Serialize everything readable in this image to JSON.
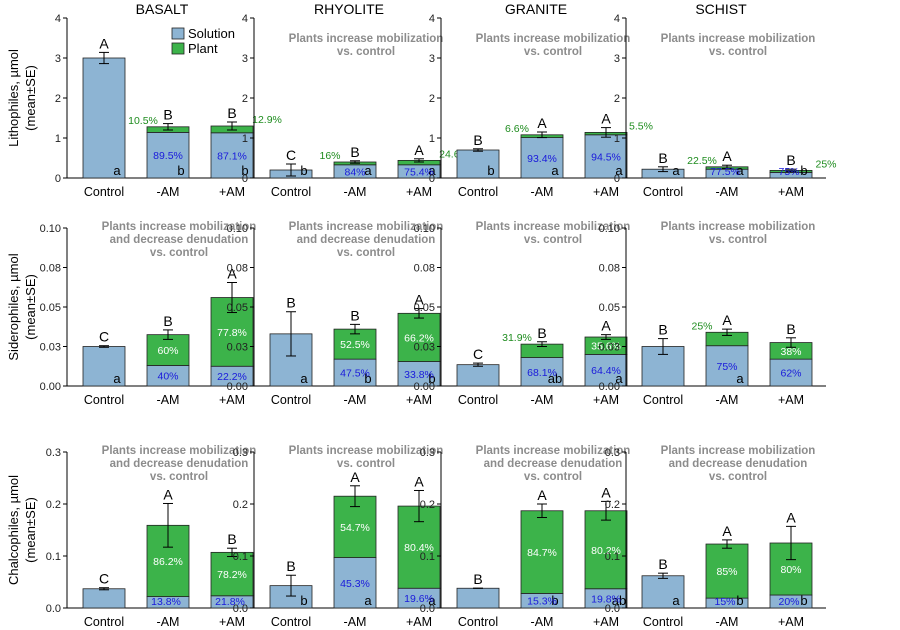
{
  "colors": {
    "solution": "#8db4d3",
    "plant": "#3cb34a",
    "pct_solution": "#1a1adb",
    "pct_plant_above": "#1e8c1e",
    "pct_plant_inside": "#ffffff",
    "note": "#8c8c8c"
  },
  "legend": {
    "solution_label": "Solution",
    "plant_label": "Plant"
  },
  "row_labels": [
    {
      "line1": "Lithophiles, µmol",
      "line2": "(mean±SE)"
    },
    {
      "line1": "Siderophiles, µmol",
      "line2": "(mean±SE)"
    },
    {
      "line1": "Chalcophiles, µmol",
      "line2": "(mean±SE)"
    }
  ],
  "chart_data": [
    {
      "type": "bar",
      "title": "BASALT",
      "row": "Lithophiles",
      "categories": [
        "Control",
        "-AM",
        "+AM"
      ],
      "ylim": [
        0,
        4
      ],
      "yticks": [
        "0",
        "1",
        "2",
        "3",
        "4"
      ],
      "series": [
        {
          "name": "Solution",
          "values": [
            3.0,
            1.14,
            1.13
          ]
        },
        {
          "name": "Plant",
          "values": [
            0,
            0.14,
            0.17
          ]
        }
      ],
      "error": [
        0.14,
        0.08,
        0.1
      ],
      "letters_top": [
        "A",
        "B",
        "B"
      ],
      "letters_bottom": [
        "a",
        "b",
        "b"
      ],
      "pct_solution": [
        "",
        "89.5%",
        "87.1%"
      ],
      "pct_plant": [
        "",
        "10.5%",
        "12.9%"
      ],
      "note": ""
    },
    {
      "type": "bar",
      "title": "RHYOLITE",
      "row": "Lithophiles",
      "categories": [
        "Control",
        "-AM",
        "+AM"
      ],
      "ylim": [
        0,
        4
      ],
      "yticks": [
        "0",
        "1",
        "2",
        "3",
        "4"
      ],
      "series": [
        {
          "name": "Solution",
          "values": [
            0.2,
            0.33,
            0.33
          ]
        },
        {
          "name": "Plant",
          "values": [
            0,
            0.07,
            0.11
          ]
        }
      ],
      "error": [
        0.15,
        0.03,
        0.04
      ],
      "letters_top": [
        "C",
        "B",
        "A"
      ],
      "letters_bottom": [
        "b",
        "a",
        "a"
      ],
      "pct_solution": [
        "",
        "84%",
        "75.4%"
      ],
      "pct_plant": [
        "",
        "16%",
        "24.6%"
      ],
      "note": "Plants increase mobilization\nvs. control"
    },
    {
      "type": "bar",
      "title": "GRANITE",
      "row": "Lithophiles",
      "categories": [
        "Control",
        "-AM",
        "+AM"
      ],
      "ylim": [
        0,
        4
      ],
      "yticks": [
        "0",
        "1",
        "2",
        "3",
        "4"
      ],
      "series": [
        {
          "name": "Solution",
          "values": [
            0.7,
            1.01,
            1.08
          ]
        },
        {
          "name": "Plant",
          "values": [
            0,
            0.07,
            0.06
          ]
        }
      ],
      "error": [
        0.03,
        0.07,
        0.12
      ],
      "letters_top": [
        "B",
        "A",
        "A"
      ],
      "letters_bottom": [
        "b",
        "a",
        "a"
      ],
      "pct_solution": [
        "",
        "93.4%",
        "94.5%"
      ],
      "pct_plant": [
        "",
        "6.6%",
        "5.5%"
      ],
      "note": "Plants increase mobilization\nvs. control"
    },
    {
      "type": "bar",
      "title": "SCHIST",
      "row": "Lithophiles",
      "categories": [
        "Control",
        "-AM",
        "+AM"
      ],
      "ylim": [
        0,
        4
      ],
      "yticks": [
        "0",
        "1",
        "2",
        "3",
        "4"
      ],
      "series": [
        {
          "name": "Solution",
          "values": [
            0.22,
            0.22,
            0.14
          ]
        },
        {
          "name": "Plant",
          "values": [
            0,
            0.06,
            0.05
          ]
        }
      ],
      "error": [
        0.06,
        0.04,
        0.03
      ],
      "letters_top": [
        "B",
        "A",
        "B"
      ],
      "letters_bottom": [
        "a",
        "a",
        "b"
      ],
      "pct_solution": [
        "",
        "77.5%",
        "75%"
      ],
      "pct_plant": [
        "",
        "22.5%",
        "25%"
      ],
      "note": "Plants increase mobilization\nvs. control"
    },
    {
      "type": "bar",
      "title": "",
      "row": "Siderophiles",
      "categories": [
        "Control",
        "-AM",
        "+AM"
      ],
      "ylim": [
        0,
        0.1
      ],
      "yticks": [
        "0.00",
        "0.03",
        "0.05",
        "0.08",
        "0.10"
      ],
      "series": [
        {
          "name": "Solution",
          "values": [
            0.025,
            0.013,
            0.0125
          ]
        },
        {
          "name": "Plant",
          "values": [
            0,
            0.0195,
            0.0435
          ]
        }
      ],
      "error": [
        0.0005,
        0.003,
        0.0095
      ],
      "letters_top": [
        "C",
        "B",
        "A"
      ],
      "letters_bottom": [
        "a",
        "",
        ""
      ],
      "pct_solution": [
        "",
        "40%",
        "22.2%"
      ],
      "pct_plant": [
        "",
        "60%",
        "77.8%"
      ],
      "note": "Plants increase mobilization\nand decrease denudation\nvs. control"
    },
    {
      "type": "bar",
      "title": "",
      "row": "Siderophiles",
      "categories": [
        "Control",
        "-AM",
        "+AM"
      ],
      "ylim": [
        0,
        0.1
      ],
      "yticks": [
        "0.00",
        "0.03",
        "0.05",
        "0.08",
        "0.10"
      ],
      "series": [
        {
          "name": "Solution",
          "values": [
            0.033,
            0.017,
            0.0155
          ]
        },
        {
          "name": "Plant",
          "values": [
            0,
            0.019,
            0.0305
          ]
        }
      ],
      "error": [
        0.014,
        0.003,
        0.003
      ],
      "letters_top": [
        "B",
        "B",
        "A"
      ],
      "letters_bottom": [
        "a",
        "b",
        "b"
      ],
      "pct_solution": [
        "",
        "47.5%",
        "33.8%"
      ],
      "pct_plant": [
        "",
        "52.5%",
        "66.2%"
      ],
      "note": "Plants increase mobilization\nand decrease denudation\nvs. control"
    },
    {
      "type": "bar",
      "title": "",
      "row": "Siderophiles",
      "categories": [
        "Control",
        "-AM",
        "+AM"
      ],
      "ylim": [
        0,
        0.1
      ],
      "yticks": [
        "0.00",
        "0.03",
        "0.05",
        "0.08",
        "0.10"
      ],
      "series": [
        {
          "name": "Solution",
          "values": [
            0.0135,
            0.018,
            0.02
          ]
        },
        {
          "name": "Plant",
          "values": [
            0,
            0.0085,
            0.011
          ]
        }
      ],
      "error": [
        0.001,
        0.0015,
        0.0015
      ],
      "letters_top": [
        "C",
        "B",
        "A"
      ],
      "letters_bottom": [
        "",
        "ab",
        "a"
      ],
      "pct_solution": [
        "",
        "68.1%",
        "64.4%"
      ],
      "pct_plant": [
        "",
        "31.9%",
        "35.6%"
      ],
      "note": "Plants increase mobilization\nvs. control"
    },
    {
      "type": "bar",
      "title": "",
      "row": "Siderophiles",
      "categories": [
        "Control",
        "-AM",
        "+AM"
      ],
      "ylim": [
        0,
        0.1
      ],
      "yticks": [
        "0.00",
        "0.03",
        "0.05",
        "0.08",
        "0.10"
      ],
      "series": [
        {
          "name": "Solution",
          "values": [
            0.025,
            0.0255,
            0.017
          ]
        },
        {
          "name": "Plant",
          "values": [
            0,
            0.0085,
            0.0105
          ]
        }
      ],
      "error": [
        0.005,
        0.002,
        0.003
      ],
      "letters_top": [
        "B",
        "A",
        "B"
      ],
      "letters_bottom": [
        "",
        "a",
        ""
      ],
      "pct_solution": [
        "",
        "75%",
        "62%"
      ],
      "pct_plant": [
        "",
        "25%",
        "38%"
      ],
      "note": "Plants increase mobilization\nvs. control"
    },
    {
      "type": "bar",
      "title": "",
      "row": "Chalcophiles",
      "categories": [
        "Control",
        "-AM",
        "+AM"
      ],
      "ylim": [
        0,
        0.3
      ],
      "yticks": [
        "0.0",
        "0.1",
        "0.2",
        "0.3"
      ],
      "series": [
        {
          "name": "Solution",
          "values": [
            0.037,
            0.022,
            0.0235
          ]
        },
        {
          "name": "Plant",
          "values": [
            0,
            0.137,
            0.0835
          ]
        }
      ],
      "error": [
        0.002,
        0.042,
        0.008
      ],
      "letters_top": [
        "C",
        "A",
        "B"
      ],
      "letters_bottom": [
        "",
        "",
        ""
      ],
      "pct_solution": [
        "",
        "13.8%",
        "21.8%"
      ],
      "pct_plant": [
        "",
        "86.2%",
        "78.2%"
      ],
      "note": "Plants increase mobilization\nand decrease denudation\nvs. control"
    },
    {
      "type": "bar",
      "title": "",
      "row": "Chalcophiles",
      "categories": [
        "Control",
        "-AM",
        "+AM"
      ],
      "ylim": [
        0,
        0.3
      ],
      "yticks": [
        "0.0",
        "0.1",
        "0.2",
        "0.3"
      ],
      "series": [
        {
          "name": "Solution",
          "values": [
            0.043,
            0.097,
            0.038
          ]
        },
        {
          "name": "Plant",
          "values": [
            0,
            0.118,
            0.158
          ]
        }
      ],
      "error": [
        0.02,
        0.02,
        0.03
      ],
      "letters_top": [
        "B",
        "A",
        "A"
      ],
      "letters_bottom": [
        "b",
        "a",
        "a"
      ],
      "pct_solution": [
        "",
        "45.3%",
        "19.6%"
      ],
      "pct_plant": [
        "",
        "54.7%",
        "80.4%"
      ],
      "note": "Plants increase mobilization\nvs. control"
    },
    {
      "type": "bar",
      "title": "",
      "row": "Chalcophiles",
      "categories": [
        "Control",
        "-AM",
        "+AM"
      ],
      "ylim": [
        0,
        0.3
      ],
      "yticks": [
        "0.0",
        "0.1",
        "0.2",
        "0.3"
      ],
      "series": [
        {
          "name": "Solution",
          "values": [
            0.038,
            0.028,
            0.037
          ]
        },
        {
          "name": "Plant",
          "values": [
            0,
            0.159,
            0.15
          ]
        }
      ],
      "error": [
        0.0,
        0.013,
        0.018
      ],
      "letters_top": [
        "B",
        "A",
        "A"
      ],
      "letters_bottom": [
        "",
        "b",
        "ab"
      ],
      "pct_solution": [
        "",
        "15.3%",
        "19.8%"
      ],
      "pct_plant": [
        "",
        "84.7%",
        "80.2%"
      ],
      "note": "Plants increase mobilization\nand decrease denudation\nvs. control"
    },
    {
      "type": "bar",
      "title": "",
      "row": "Chalcophiles",
      "categories": [
        "Control",
        "-AM",
        "+AM"
      ],
      "ylim": [
        0,
        0.3
      ],
      "yticks": [
        "0.0",
        "0.1",
        "0.2",
        "0.3"
      ],
      "series": [
        {
          "name": "Solution",
          "values": [
            0.062,
            0.019,
            0.025
          ]
        },
        {
          "name": "Plant",
          "values": [
            0,
            0.104,
            0.1
          ]
        }
      ],
      "error": [
        0.005,
        0.008,
        0.032
      ],
      "letters_top": [
        "B",
        "A",
        "A"
      ],
      "letters_bottom": [
        "a",
        "b",
        "b"
      ],
      "pct_solution": [
        "",
        "15%",
        "20%"
      ],
      "pct_plant": [
        "",
        "85%",
        "80%"
      ],
      "note": "Plants increase mobilization\nand decrease denudation\nvs. control"
    }
  ]
}
